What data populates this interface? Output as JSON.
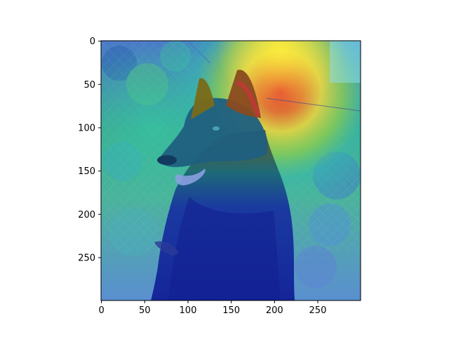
{
  "image": {
    "subject": "dog-photo-with-attention-heatmap-overlay",
    "heatmap_colormap": "jet",
    "heatmap_peak_region": "upper-right, around the ear",
    "colors": {
      "frame": "#000000",
      "background": "#ffffff"
    }
  },
  "axes": {
    "x_range": [
      0,
      299
    ],
    "y_range": [
      299,
      0
    ],
    "x_ticks": [
      "0",
      "50",
      "100",
      "150",
      "200",
      "250"
    ],
    "y_ticks": [
      "0",
      "50",
      "100",
      "150",
      "200",
      "250"
    ]
  }
}
